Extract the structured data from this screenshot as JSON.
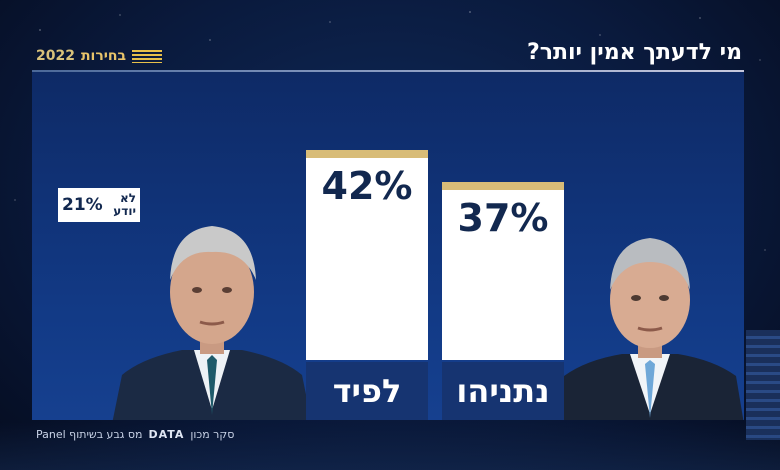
{
  "header": {
    "title": "מי לדעתך אמין יותר?",
    "brand_text": "בחירות",
    "brand_year": "2022"
  },
  "chart_data": {
    "type": "bar",
    "categories": [
      "לפיד",
      "נתניהו"
    ],
    "values": [
      42,
      37
    ],
    "value_labels": [
      "42%",
      "37%"
    ],
    "unit": "%",
    "title": "",
    "extra": {
      "label": "לא יודע",
      "value": 21,
      "value_label": "21%"
    }
  },
  "dont_know": {
    "line1": "לא",
    "line2": "יודע"
  },
  "footer": {
    "text": "סקר מכון",
    "logo": "DATA",
    "partner": "מס גבע בשיתוף Panel"
  },
  "colors": {
    "bar_top": "#d8bc78",
    "bar_label_bg": "#163471",
    "value_text": "#12284f"
  },
  "images": [
    "lapid-portrait",
    "netanyahu-portrait"
  ]
}
